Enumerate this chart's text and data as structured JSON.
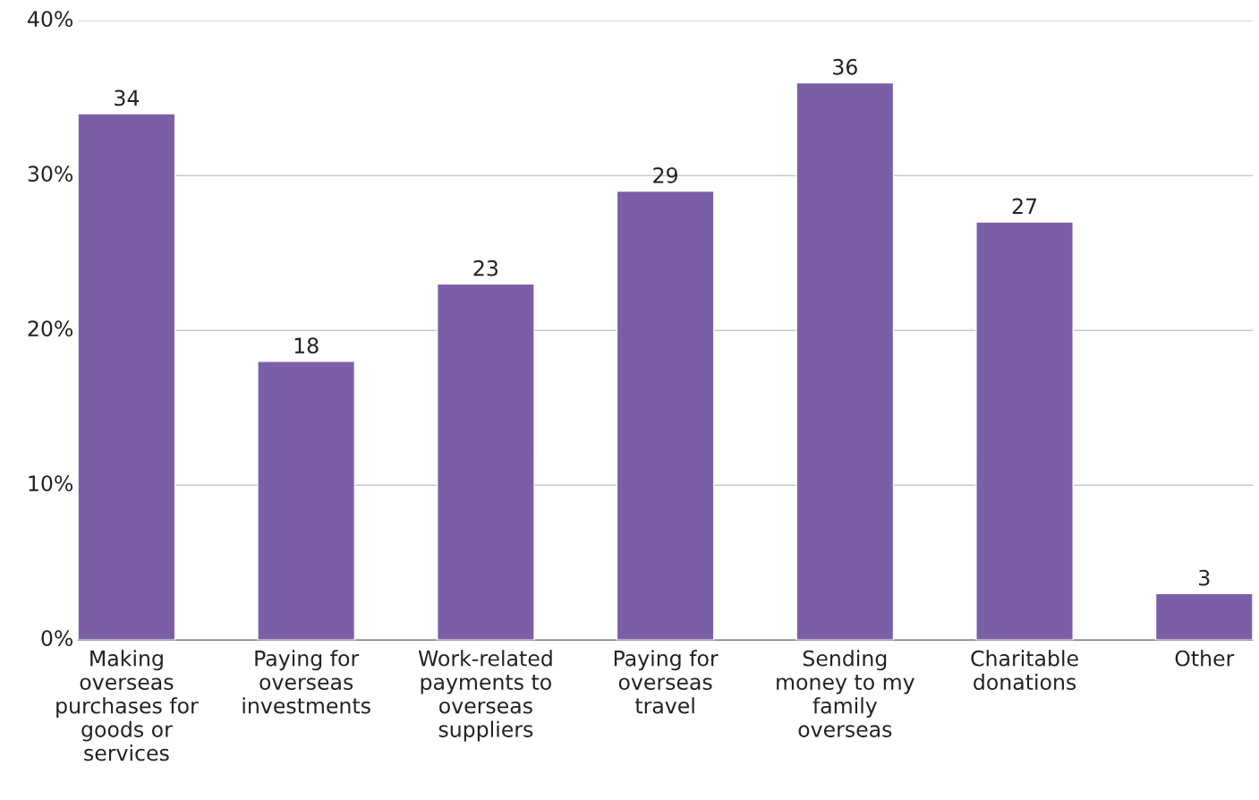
{
  "chart_data": {
    "type": "bar",
    "categories": [
      "Making\noverseas\npurchases for\ngoods or\nservices",
      "Paying for\noverseas\ninvestments",
      "Work-related\npayments to\noverseas\nsuppliers",
      "Paying for\noverseas\ntravel",
      "Sending\nmoney to my\nfamily\noverseas",
      "Charitable\ndonations",
      "Other"
    ],
    "values": [
      34,
      18,
      23,
      29,
      36,
      27,
      3
    ],
    "color": "#7b5fa6",
    "ylim": [
      0,
      40
    ],
    "yticks": [
      {
        "value": 0,
        "label": "0%"
      },
      {
        "value": 10,
        "label": "10%"
      },
      {
        "value": 20,
        "label": "20%"
      },
      {
        "value": 30,
        "label": "30%"
      },
      {
        "value": 40,
        "label": "40%"
      }
    ],
    "grid": "y",
    "data_labels": true,
    "legend": false
  }
}
